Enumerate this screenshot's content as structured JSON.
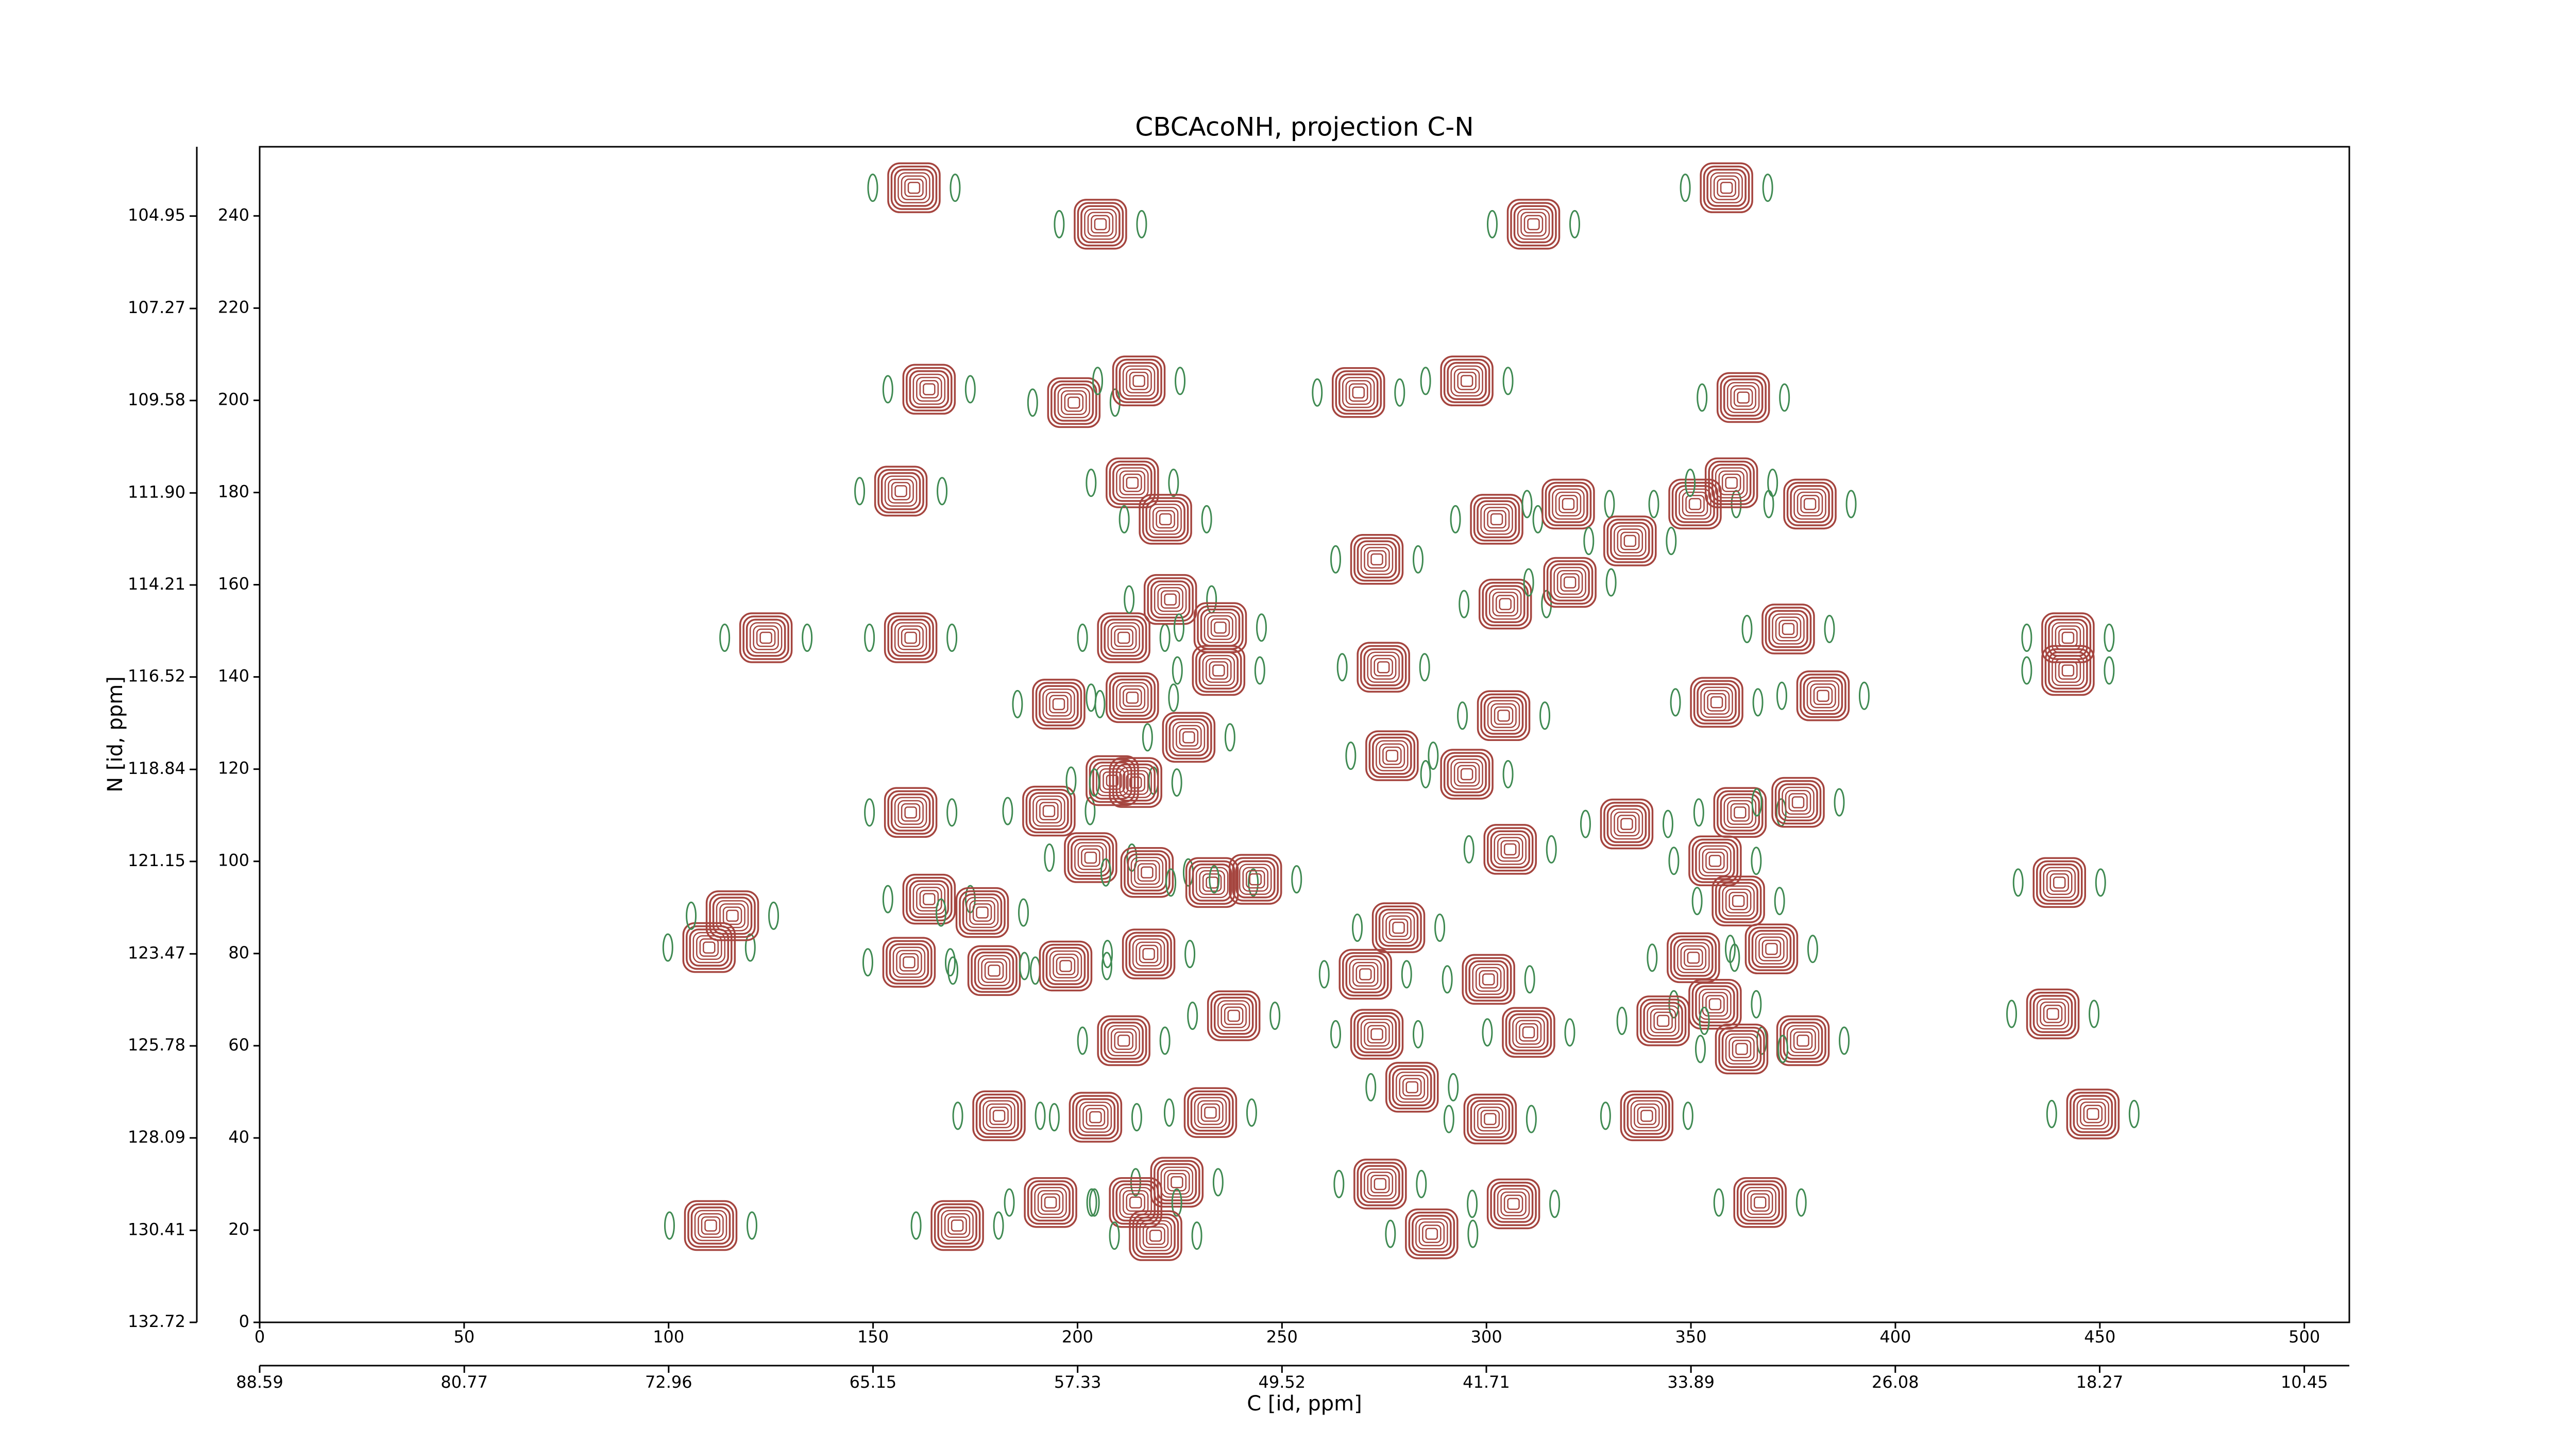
{
  "chart_data": {
    "type": "contour",
    "title": "CBCAcoNH, projection C-N",
    "xlabel": "C [id, ppm]",
    "ylabel": "N [id, ppm]",
    "color": "#a5453f",
    "x": [
      160.0,
      205.6,
      311.5,
      358.7,
      163.7,
      199.1,
      215.0,
      268.7,
      295.2,
      362.8,
      156.8,
      213.4,
      221.5,
      302.5,
      320.0,
      335.1,
      351.0,
      359.9,
      379.1,
      273.2,
      304.6,
      320.4,
      123.8,
      159.2,
      211.3,
      222.7,
      234.9,
      234.5,
      274.8,
      195.4,
      213.4,
      227.2,
      304.2,
      356.3,
      382.3,
      373.8,
      442.2,
      442.2,
      159.2,
      193.0,
      208.5,
      214.2,
      276.9,
      295.2,
      305.8,
      334.3,
      355.9,
      362.0,
      376.2,
      440.1,
      163.7,
      176.7,
      203.2,
      217.0,
      232.9,
      278.5,
      361.6,
      350.6,
      369.7,
      158.8,
      179.6,
      197.1,
      217.4,
      243.5,
      270.4,
      300.5,
      355.9,
      109.9,
      115.6,
      238.2,
      211.3,
      273.2,
      310.3,
      377.4,
      343.2,
      438.5,
      180.8,
      204.4,
      232.5,
      281.8,
      300.9,
      339.2,
      448.3,
      193.4,
      224.3,
      214.2,
      219.1,
      274.0,
      286.6,
      306.6,
      366.9,
      170.6,
      110.3,
      362.4
    ],
    "values": [
      246.1,
      238.2,
      238.2,
      246.1,
      202.4,
      199.5,
      204.2,
      201.7,
      204.2,
      200.6,
      180.3,
      182.1,
      174.2,
      174.2,
      177.5,
      169.5,
      177.5,
      182.1,
      177.5,
      165.5,
      155.8,
      160.5,
      148.5,
      148.5,
      148.5,
      156.8,
      150.7,
      141.4,
      142.1,
      134.1,
      135.5,
      126.9,
      131.6,
      134.5,
      135.9,
      150.4,
      148.5,
      141.4,
      110.6,
      110.9,
      117.5,
      117.1,
      122.9,
      118.9,
      102.6,
      108.1,
      100.1,
      110.6,
      112.8,
      95.4,
      91.8,
      88.9,
      100.8,
      97.6,
      95.4,
      85.6,
      91.4,
      79.1,
      81.0,
      78.1,
      76.3,
      77.3,
      79.9,
      96.1,
      75.5,
      74.4,
      69.0,
      81.3,
      88.2,
      66.5,
      61.1,
      62.5,
      62.9,
      61.1,
      65.4,
      66.9,
      44.8,
      44.5,
      45.5,
      51.0,
      44.1,
      44.8,
      45.2,
      26.0,
      30.4,
      26.0,
      18.8,
      30.0,
      19.2,
      25.7,
      26.0,
      21.0,
      21.0,
      59.3
    ],
    "xlim": [
      0,
      511
    ],
    "ylim": [
      0,
      255
    ],
    "xticks": [
      0,
      50,
      100,
      150,
      200,
      250,
      300,
      350,
      400,
      450,
      500
    ],
    "yticks": [
      0,
      20,
      40,
      60,
      80,
      100,
      120,
      140,
      160,
      180,
      200,
      220,
      240
    ],
    "x2lim": [
      88.59,
      8.73
    ],
    "x2ticks": [
      88.59,
      80.77,
      72.96,
      65.15,
      57.33,
      49.52,
      41.71,
      33.89,
      26.08,
      18.27,
      10.45
    ],
    "y2lim": [
      132.72,
      103.21
    ],
    "y2ticks": [
      132.72,
      130.41,
      128.09,
      125.78,
      123.47,
      121.15,
      118.84,
      116.52,
      114.21,
      {
        "value": 111.9,
        "label": "111.90"
      },
      109.58,
      107.27,
      104.95
    ]
  }
}
